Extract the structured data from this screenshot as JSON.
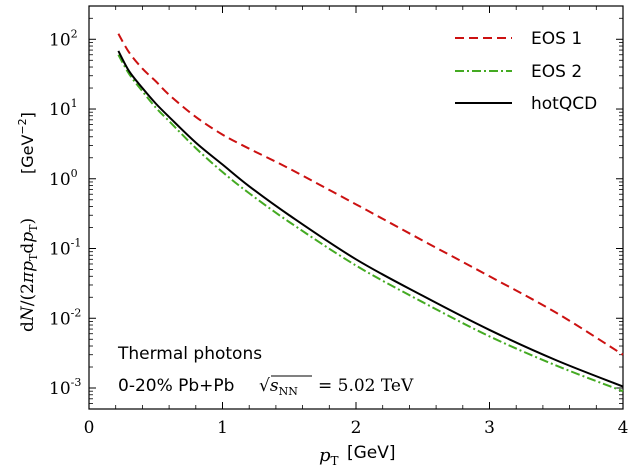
{
  "chart_data": {
    "type": "line",
    "xlabel": "p_T [GeV]",
    "ylabel": "dN/(2πp_T dp_T) [GeV^-2]",
    "xlim": [
      0,
      4
    ],
    "ylim": [
      0.0005,
      300
    ],
    "y_scale": "log",
    "x_ticks": [
      "0",
      "1",
      "2",
      "3",
      "4"
    ],
    "y_ticks": [
      {
        "value": 0.001,
        "base": "10",
        "exp": "-3"
      },
      {
        "value": 0.01,
        "base": "10",
        "exp": "-2"
      },
      {
        "value": 0.1,
        "base": "10",
        "exp": "-1"
      },
      {
        "value": 1,
        "base": "10",
        "exp": "0"
      },
      {
        "value": 10,
        "base": "10",
        "exp": "1"
      },
      {
        "value": 100,
        "base": "10",
        "exp": "2"
      }
    ],
    "legend_position": "top-right",
    "annotations": [
      "Thermal photons",
      "0-20% Pb+Pb √s_NN = 5.02 TeV"
    ],
    "series": [
      {
        "name": "EOS 1",
        "color": "#cc1111",
        "style": "dashed",
        "x": [
          0.22,
          0.3,
          0.4,
          0.5,
          0.6,
          0.8,
          1.0,
          1.2,
          1.5,
          2.0,
          2.5,
          3.0,
          3.5,
          4.0
        ],
        "y": [
          120,
          65,
          38,
          25,
          16,
          7.7,
          4.3,
          2.7,
          1.4,
          0.43,
          0.13,
          0.04,
          0.012,
          0.003
        ]
      },
      {
        "name": "EOS 2",
        "color": "#44aa22",
        "style": "dashdot",
        "x": [
          0.22,
          0.3,
          0.4,
          0.5,
          0.6,
          0.8,
          1.0,
          1.2,
          1.5,
          2.0,
          2.5,
          3.0,
          3.5,
          4.0
        ],
        "y": [
          60,
          32,
          18,
          10.5,
          6.7,
          2.75,
          1.25,
          0.62,
          0.24,
          0.057,
          0.017,
          0.0055,
          0.0021,
          0.0009
        ]
      },
      {
        "name": "hotQCD",
        "color": "#000000",
        "style": "solid",
        "x": [
          0.22,
          0.3,
          0.4,
          0.5,
          0.6,
          0.8,
          1.0,
          1.2,
          1.5,
          2.0,
          2.5,
          3.0,
          3.5,
          4.0
        ],
        "y": [
          68,
          35,
          20,
          12,
          7.7,
          3.3,
          1.6,
          0.78,
          0.3,
          0.07,
          0.021,
          0.0068,
          0.0025,
          0.00105
        ]
      }
    ]
  },
  "legend": {
    "items": [
      "EOS 1",
      "EOS 2",
      "hotQCD"
    ]
  },
  "labels": {
    "ylabel_text": "[GeV",
    "ylabel_exp": "−2",
    "ylabel_close": "]",
    "xlabel_unit": "[GeV]",
    "annotation_line1": "Thermal photons",
    "annotation_line2_a": "0-20% Pb+Pb",
    "annotation_line2_b": "= 5.02 TeV"
  }
}
